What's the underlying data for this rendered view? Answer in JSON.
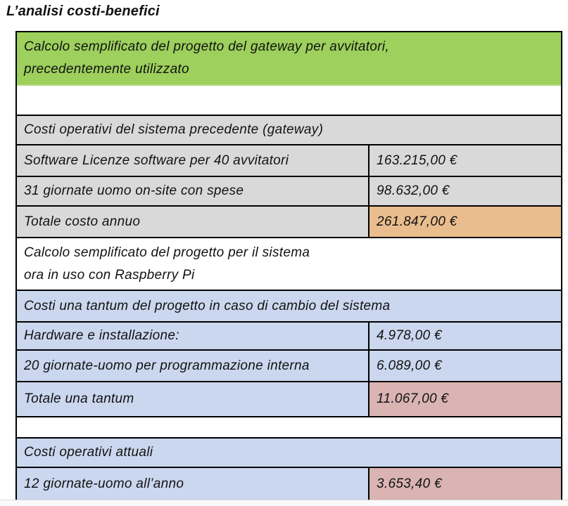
{
  "page": {
    "title": "L’analisi costi-benefici"
  },
  "colors": {
    "header_green": "#9dd05c",
    "section_gray": "#d9d9d9",
    "section_blue": "#cad7ee",
    "highlight_orange": "#e9bd8d",
    "highlight_pink": "#d9b4b3",
    "border": "#000000"
  },
  "table": {
    "rows": [
      {
        "label": "Calcolo semplificato del progetto del gateway per avvitatori,",
        "label2": "precedentemente utilizzato"
      },
      {
        "label": ""
      },
      {
        "label": "Costi operativi del sistema precedente (gateway)"
      },
      {
        "label": "Software Licenze software per 40 avvitatori",
        "value": "163.215,00 €"
      },
      {
        "label": "31 giornate uomo on-site con spese",
        "value": "98.632,00 €"
      },
      {
        "label": "Totale costo annuo",
        "value": "261.847,00 €"
      },
      {
        "label": "Calcolo semplificato del progetto per il sistema",
        "label2": "ora in uso con Raspberry Pi"
      },
      {
        "label": "Costi una tantum del progetto in caso di cambio del sistema"
      },
      {
        "label": "Hardware e installazione:",
        "value": "4.978,00 €"
      },
      {
        "label": "20 giornate-uomo per programmazione interna",
        "value": "6.089,00 €"
      },
      {
        "label": "Totale una tantum",
        "value": "11.067,00 €"
      },
      {
        "label": ""
      },
      {
        "label": "Costi operativi attuali"
      },
      {
        "label": "12 giornate-uomo all’anno",
        "value": "3.653,40 €"
      }
    ]
  }
}
